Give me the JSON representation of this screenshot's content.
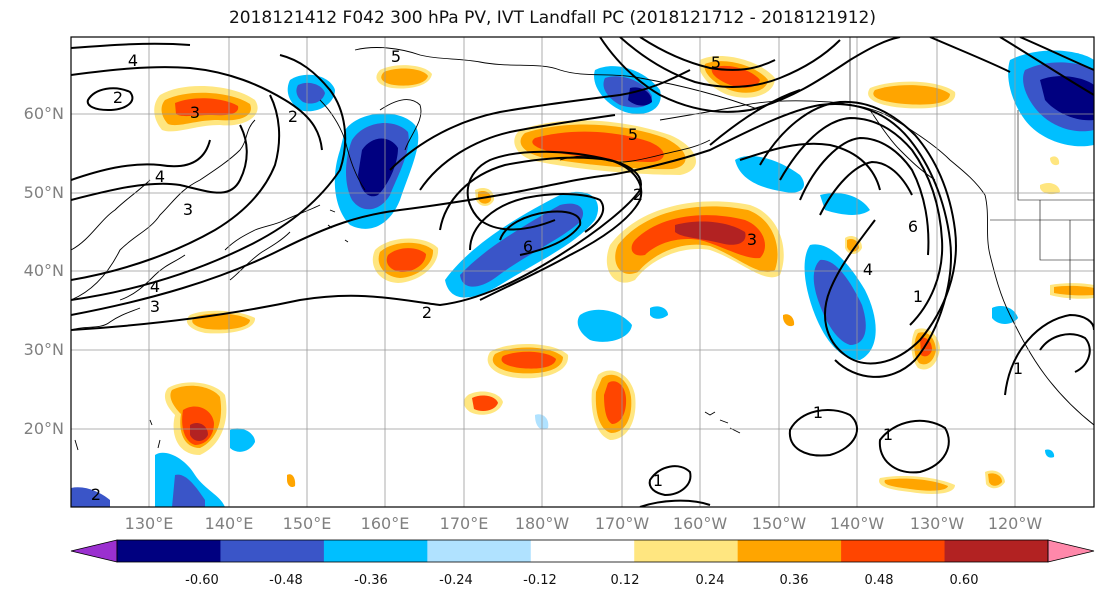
{
  "title": "2018121412 F042 300 hPa PV, IVT Landfall PC (2018121712 - 2018121912)",
  "lat_labels": [
    "60°N",
    "50°N",
    "40°N",
    "30°N",
    "20°N"
  ],
  "lon_labels": [
    "130°E",
    "140°E",
    "150°E",
    "160°E",
    "170°E",
    "180°W",
    "170°W",
    "160°W",
    "150°W",
    "140°W",
    "130°W",
    "120°W"
  ],
  "colorbar": {
    "ticks": [
      "-0.60",
      "-0.48",
      "-0.36",
      "-0.24",
      "-0.12",
      "0.12",
      "0.24",
      "0.36",
      "0.48",
      "0.60"
    ],
    "colors": [
      "#9b30d0",
      "#000080",
      "#3a55c8",
      "#00bfff",
      "#b0e2ff",
      "#ffffff",
      "#ffe680",
      "#ffa500",
      "#ff4500",
      "#b22222",
      "#ff88aa"
    ]
  },
  "contour_labels": [
    "4",
    "2",
    "3",
    "5",
    "4",
    "3",
    "4",
    "3",
    "2",
    "2",
    "5",
    "6",
    "5",
    "2",
    "3",
    "6",
    "4",
    "1",
    "1",
    "1",
    "1",
    "1",
    "2"
  ]
}
